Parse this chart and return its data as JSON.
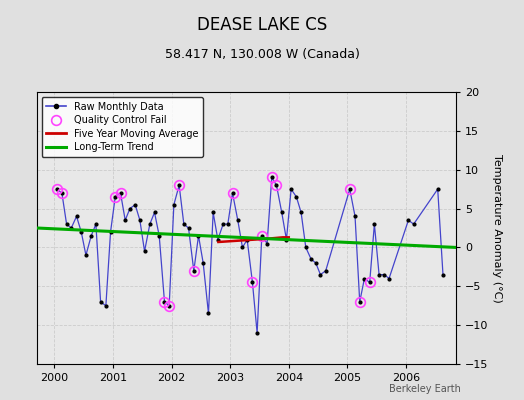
{
  "title": "DEASE LAKE CS",
  "subtitle": "58.417 N, 130.008 W (Canada)",
  "ylabel": "Temperature Anomaly (°C)",
  "watermark": "Berkeley Earth",
  "ylim": [
    -15,
    20
  ],
  "xlim": [
    1999.7,
    2006.85
  ],
  "yticks": [
    -15,
    -10,
    -5,
    0,
    5,
    10,
    15,
    20
  ],
  "xticks": [
    2000,
    2001,
    2002,
    2003,
    2004,
    2005,
    2006
  ],
  "bg_color": "#e0e0e0",
  "plot_bg_color": "#e8e8e8",
  "raw_x": [
    2000.04,
    2000.13,
    2000.21,
    2000.29,
    2000.38,
    2000.46,
    2000.54,
    2000.63,
    2000.71,
    2000.79,
    2000.88,
    2000.96,
    2001.04,
    2001.13,
    2001.21,
    2001.29,
    2001.38,
    2001.46,
    2001.54,
    2001.63,
    2001.71,
    2001.79,
    2001.88,
    2001.96,
    2002.04,
    2002.13,
    2002.21,
    2002.29,
    2002.38,
    2002.46,
    2002.54,
    2002.63,
    2002.71,
    2002.79,
    2002.88,
    2002.96,
    2003.04,
    2003.13,
    2003.21,
    2003.29,
    2003.38,
    2003.46,
    2003.54,
    2003.63,
    2003.71,
    2003.79,
    2003.88,
    2003.96,
    2004.04,
    2004.13,
    2004.21,
    2004.29,
    2004.38,
    2004.46,
    2004.54,
    2004.63,
    2005.04,
    2005.13,
    2005.21,
    2005.29,
    2005.38,
    2005.46,
    2005.54,
    2005.63,
    2005.71,
    2006.04,
    2006.13,
    2006.54,
    2006.63
  ],
  "raw_y": [
    7.5,
    7.0,
    3.0,
    2.5,
    4.0,
    2.0,
    -1.0,
    1.5,
    3.0,
    -7.0,
    -7.5,
    2.0,
    6.5,
    7.0,
    3.5,
    5.0,
    5.5,
    3.5,
    -0.5,
    3.0,
    4.5,
    1.5,
    -7.0,
    -7.5,
    5.5,
    8.0,
    3.0,
    2.5,
    -3.0,
    1.5,
    -2.0,
    -8.5,
    4.5,
    1.0,
    3.0,
    3.0,
    7.0,
    3.5,
    0.0,
    1.0,
    -4.5,
    -11.0,
    1.5,
    0.5,
    9.0,
    8.0,
    4.5,
    1.0,
    7.5,
    6.5,
    4.5,
    0.0,
    -1.5,
    -2.0,
    -3.5,
    -3.0,
    7.5,
    4.0,
    -7.0,
    -4.0,
    -4.5,
    3.0,
    -3.5,
    -3.5,
    -4.0,
    3.5,
    3.0,
    7.5,
    -3.5
  ],
  "qc_fail_x": [
    2000.04,
    2000.13,
    2001.04,
    2001.13,
    2001.88,
    2001.96,
    2002.13,
    2002.38,
    2003.04,
    2003.38,
    2003.54,
    2003.71,
    2003.79,
    2005.04,
    2005.21,
    2005.38
  ],
  "qc_fail_y": [
    7.5,
    7.0,
    6.5,
    7.0,
    -7.0,
    -7.5,
    8.0,
    -3.0,
    7.0,
    -4.5,
    1.5,
    9.0,
    8.0,
    7.5,
    -7.0,
    -4.5
  ],
  "moving_avg_x": [
    2002.8,
    2003.0,
    2003.2,
    2003.4,
    2003.6,
    2003.9,
    2004.0
  ],
  "moving_avg_y": [
    0.7,
    0.8,
    0.9,
    1.0,
    1.1,
    1.3,
    1.3
  ],
  "trend_x": [
    1999.7,
    2006.85
  ],
  "trend_y": [
    2.5,
    0.0
  ],
  "line_color": "#4444cc",
  "dot_color": "#000000",
  "qc_color": "#ff44ff",
  "moving_avg_color": "#cc0000",
  "trend_color": "#00aa00",
  "grid_color": "#cccccc",
  "title_fontsize": 12,
  "subtitle_fontsize": 9,
  "tick_fontsize": 8,
  "ylabel_fontsize": 8
}
